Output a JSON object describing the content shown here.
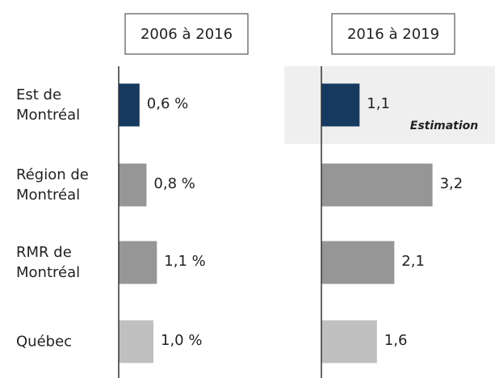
{
  "chart_data": {
    "type": "bar",
    "categories": [
      "Est de Montréal",
      "Région de Montréal",
      "RMR de Montréal",
      "Québec"
    ],
    "colors": [
      "#163a5f",
      "#969696",
      "#969696",
      "#c0c0c0"
    ],
    "series": [
      {
        "name": "2006 à 2016",
        "values": [
          0.6,
          0.8,
          1.1,
          1.0
        ],
        "value_labels": [
          "0,6 %",
          "0,8 %",
          "1,1 %",
          "1,0 %"
        ]
      },
      {
        "name": "2016 à 2019",
        "values": [
          1.1,
          3.2,
          2.1,
          1.6
        ],
        "value_labels": [
          "1,1",
          "3,2",
          "2,1",
          "1,6"
        ]
      }
    ],
    "annotation": "Estimation"
  }
}
